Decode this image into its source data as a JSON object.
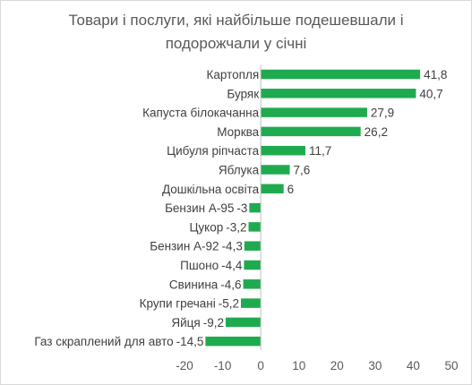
{
  "chart_data": {
    "type": "bar",
    "orientation": "horizontal",
    "title_line1": "Товари і послуги, які найбільше подешевшали і",
    "title_line2": "подорожчали у січні",
    "categories": [
      "Картопля",
      "Буряк",
      "Капуста білокачанна",
      "Морква",
      "Цибуля ріпчаста",
      "Яблука",
      "Дошкільна освіта",
      "Бензин А-95",
      "Цукор",
      "Бензин А-92",
      "Пшоно",
      "Свинина",
      "Крупи гречані",
      "Яйця",
      "Газ скраплений для авто"
    ],
    "values": [
      41.8,
      40.7,
      27.9,
      26.2,
      11.7,
      7.6,
      6,
      -3,
      -3.2,
      -4.3,
      -4.4,
      -4.6,
      -5.2,
      -9.2,
      -14.5
    ],
    "value_labels": [
      "41,8",
      "40,7",
      "27,9",
      "26,2",
      "11,7",
      "7,6",
      "6",
      "-3",
      "-3,2",
      "-4,3",
      "-4,4",
      "-4,6",
      "-5,2",
      "-9,2",
      "-14,5"
    ],
    "xlim": [
      -20,
      50
    ],
    "xticks": [
      -20,
      -10,
      0,
      10,
      20,
      30,
      40,
      50
    ],
    "grid": false,
    "bar_color": "#1faa50"
  }
}
